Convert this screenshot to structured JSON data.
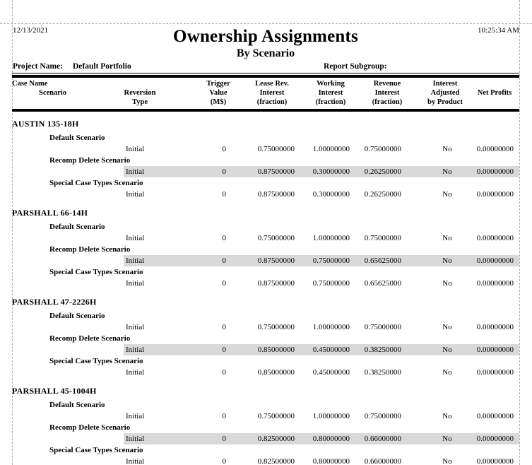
{
  "page": {
    "date": "12/13/2021",
    "time": "10:25:34 AM",
    "title": "Ownership Assignments",
    "subtitle": "By Scenario",
    "project_label": "Project Name:",
    "project_value": "Default Portfolio",
    "subgroup_label": "Report Subgroup:"
  },
  "colors": {
    "highlight_row": "#d9d9d9",
    "rule": "#000000",
    "margin_guide": "#b0b0b0"
  },
  "table": {
    "headers": {
      "case_name": "Case Name",
      "scenario": "Scenario",
      "reversion_type": "Reversion\nType",
      "trigger_value": "Trigger\nValue\n(M$)",
      "lease_rev": "Lease Rev.\nInterest\n(fraction)",
      "working": "Working\nInterest\n(fraction)",
      "revenue": "Revenue\nInterest\n(fraction)",
      "adjusted": "Interest\nAdjusted\nby Product",
      "net_profits": "Net Profits"
    },
    "groups": [
      {
        "case_name": "AUSTIN 135-18H",
        "scenarios": [
          {
            "name": "Default Scenario",
            "reversion_type": "Initial",
            "trigger_value": "0",
            "lease_rev": "0.75000000",
            "working": "1.00000000",
            "revenue": "0.75000000",
            "adjusted": "No",
            "net_profits": "0.00000000",
            "highlight": false
          },
          {
            "name": "Recomp Delete Scenario",
            "reversion_type": "Initial",
            "trigger_value": "0",
            "lease_rev": "0.87500000",
            "working": "0.30000000",
            "revenue": "0.26250000",
            "adjusted": "No",
            "net_profits": "0.00000000",
            "highlight": true
          },
          {
            "name": "Special Case Types Scenario",
            "reversion_type": "Initial",
            "trigger_value": "0",
            "lease_rev": "0.87500000",
            "working": "0.30000000",
            "revenue": "0.26250000",
            "adjusted": "No",
            "net_profits": "0.00000000",
            "highlight": false
          }
        ]
      },
      {
        "case_name": "PARSHALL 66-14H",
        "scenarios": [
          {
            "name": "Default Scenario",
            "reversion_type": "Initial",
            "trigger_value": "0",
            "lease_rev": "0.75000000",
            "working": "1.00000000",
            "revenue": "0.75000000",
            "adjusted": "No",
            "net_profits": "0.00000000",
            "highlight": false
          },
          {
            "name": "Recomp Delete Scenario",
            "reversion_type": "Initial",
            "trigger_value": "0",
            "lease_rev": "0.87500000",
            "working": "0.75000000",
            "revenue": "0.65625000",
            "adjusted": "No",
            "net_profits": "0.00000000",
            "highlight": true
          },
          {
            "name": "Special Case Types Scenario",
            "reversion_type": "Initial",
            "trigger_value": "0",
            "lease_rev": "0.87500000",
            "working": "0.75000000",
            "revenue": "0.65625000",
            "adjusted": "No",
            "net_profits": "0.00000000",
            "highlight": false
          }
        ]
      },
      {
        "case_name": "PARSHALL 47-2226H",
        "scenarios": [
          {
            "name": "Default Scenario",
            "reversion_type": "Initial",
            "trigger_value": "0",
            "lease_rev": "0.75000000",
            "working": "1.00000000",
            "revenue": "0.75000000",
            "adjusted": "No",
            "net_profits": "0.00000000",
            "highlight": false
          },
          {
            "name": "Recomp Delete Scenario",
            "reversion_type": "Initial",
            "trigger_value": "0",
            "lease_rev": "0.85000000",
            "working": "0.45000000",
            "revenue": "0.38250000",
            "adjusted": "No",
            "net_profits": "0.00000000",
            "highlight": true
          },
          {
            "name": "Special Case Types Scenario",
            "reversion_type": "Initial",
            "trigger_value": "0",
            "lease_rev": "0.85000000",
            "working": "0.45000000",
            "revenue": "0.38250000",
            "adjusted": "No",
            "net_profits": "0.00000000",
            "highlight": false
          }
        ]
      },
      {
        "case_name": "PARSHALL 45-1004H",
        "scenarios": [
          {
            "name": "Default Scenario",
            "reversion_type": "Initial",
            "trigger_value": "0",
            "lease_rev": "0.75000000",
            "working": "1.00000000",
            "revenue": "0.75000000",
            "adjusted": "No",
            "net_profits": "0.00000000",
            "highlight": false
          },
          {
            "name": "Recomp Delete Scenario",
            "reversion_type": "Initial",
            "trigger_value": "0",
            "lease_rev": "0.82500000",
            "working": "0.80000000",
            "revenue": "0.66000000",
            "adjusted": "No",
            "net_profits": "0.00000000",
            "highlight": true
          },
          {
            "name": "Special Case Types Scenario",
            "reversion_type": "Initial",
            "trigger_value": "0",
            "lease_rev": "0.82500000",
            "working": "0.80000000",
            "revenue": "0.66000000",
            "adjusted": "No",
            "net_profits": "0.00000000",
            "highlight": false
          }
        ]
      }
    ]
  }
}
